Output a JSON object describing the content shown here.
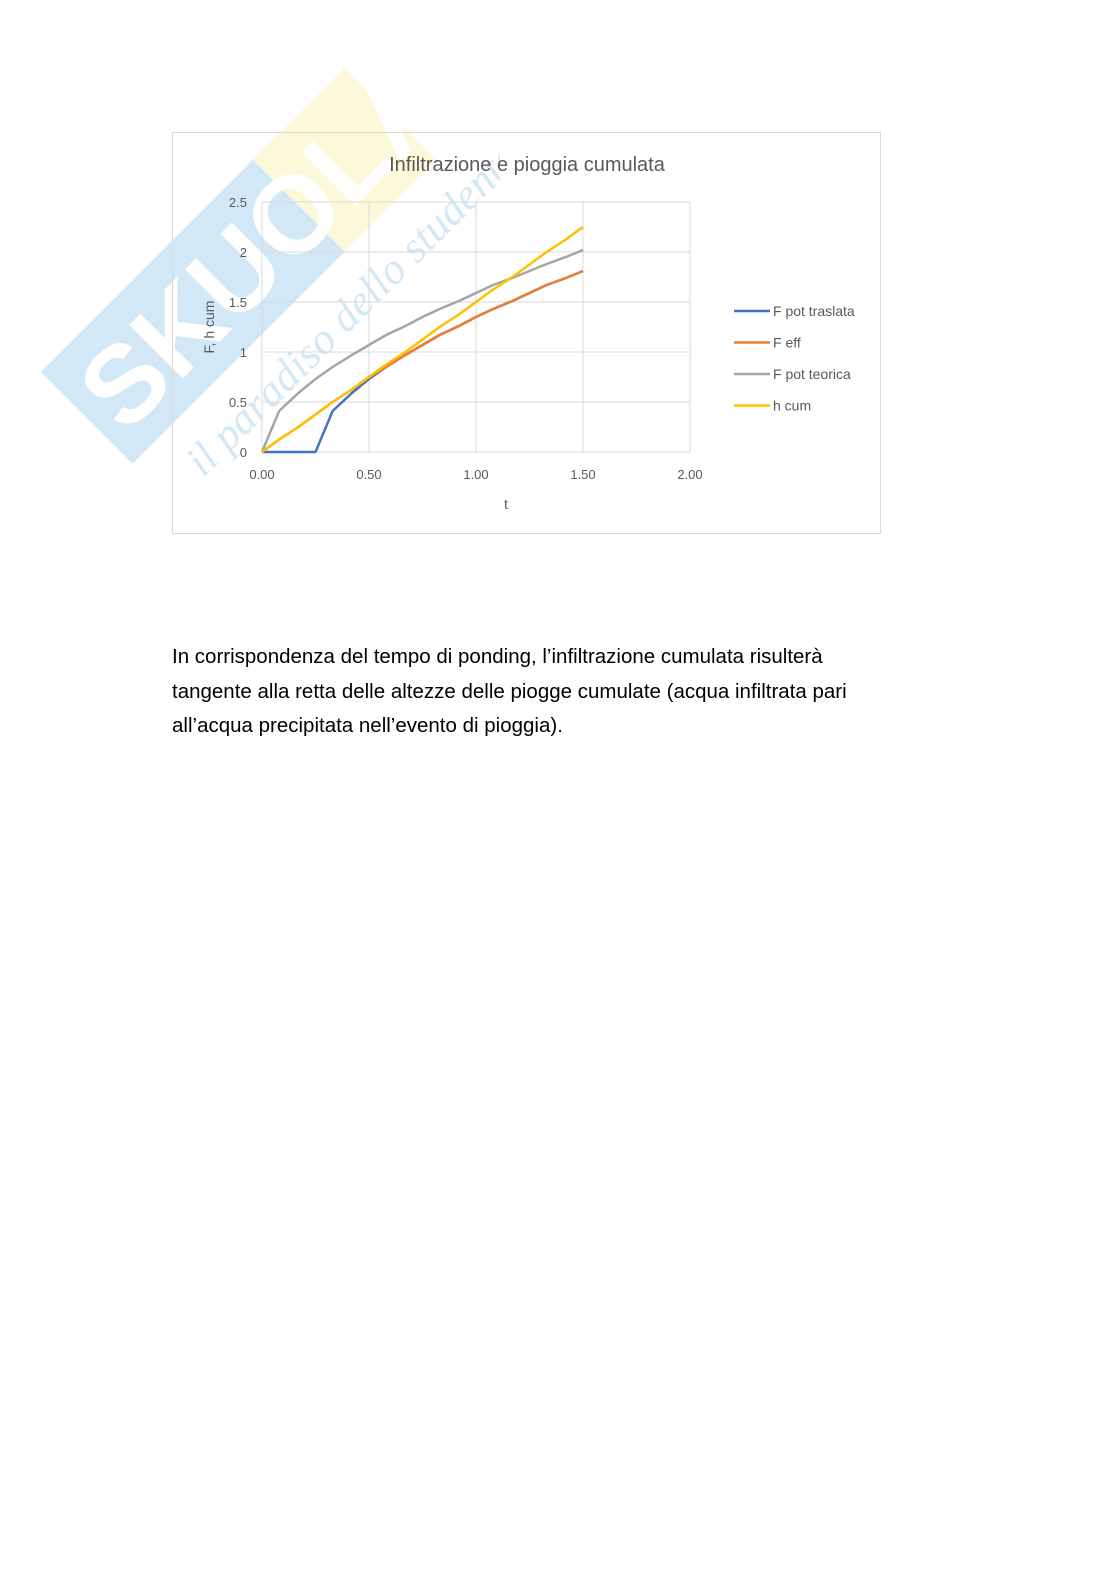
{
  "watermark": {
    "logo_text": "Skuola.net",
    "tagline": "il paradiso dello studente"
  },
  "chart_data": {
    "type": "line",
    "title": "Infiltrazione e pioggia cumulata",
    "xlabel": "t",
    "ylabel": "F, h cum",
    "xlim": [
      0,
      2
    ],
    "ylim": [
      0,
      2.5
    ],
    "x_ticks": [
      "0.00",
      "0.50",
      "1.00",
      "1.50",
      "2.00"
    ],
    "y_ticks": [
      "0",
      "0.5",
      "1",
      "1.5",
      "2",
      "2.5"
    ],
    "grid": true,
    "legend_position": "right",
    "x": [
      0,
      0.08,
      0.17,
      0.25,
      0.33,
      0.42,
      0.5,
      0.58,
      0.67,
      0.75,
      0.83,
      0.92,
      1.0,
      1.08,
      1.17,
      1.25,
      1.33,
      1.42,
      1.5
    ],
    "series": [
      {
        "name": "F pot traslata",
        "color": "#4472c4",
        "values": [
          0,
          0,
          0,
          0,
          0.41,
          0.59,
          0.73,
          0.85,
          0.97,
          1.07,
          1.17,
          1.26,
          1.35,
          1.43,
          1.51,
          1.59,
          1.67,
          1.74,
          1.81
        ]
      },
      {
        "name": "F eff",
        "color": "#ed7d31",
        "values": [
          0,
          0.125,
          0.25,
          0.375,
          0.5,
          0.625,
          0.75,
          0.85,
          0.97,
          1.07,
          1.17,
          1.26,
          1.35,
          1.43,
          1.51,
          1.59,
          1.67,
          1.74,
          1.81
        ]
      },
      {
        "name": "F pot teorica",
        "color": "#a5a5a5",
        "values": [
          0,
          0.41,
          0.59,
          0.73,
          0.85,
          0.97,
          1.07,
          1.17,
          1.26,
          1.35,
          1.43,
          1.51,
          1.59,
          1.67,
          1.74,
          1.81,
          1.88,
          1.95,
          2.02
        ]
      },
      {
        "name": "h cum",
        "color": "#ffc000",
        "values": [
          0,
          0.125,
          0.25,
          0.375,
          0.5,
          0.625,
          0.75,
          0.875,
          1.0,
          1.125,
          1.25,
          1.375,
          1.5,
          1.625,
          1.75,
          1.875,
          2.0,
          2.125,
          2.25
        ]
      }
    ]
  },
  "paragraph": {
    "lines": [
      "In corrispondenza del tempo di ponding, l’infiltrazione cumulata risulterà",
      "tangente alla retta delle altezze delle piogge cumulate (acqua infiltrata pari",
      "all’acqua precipitata nell’evento di pioggia)."
    ]
  }
}
